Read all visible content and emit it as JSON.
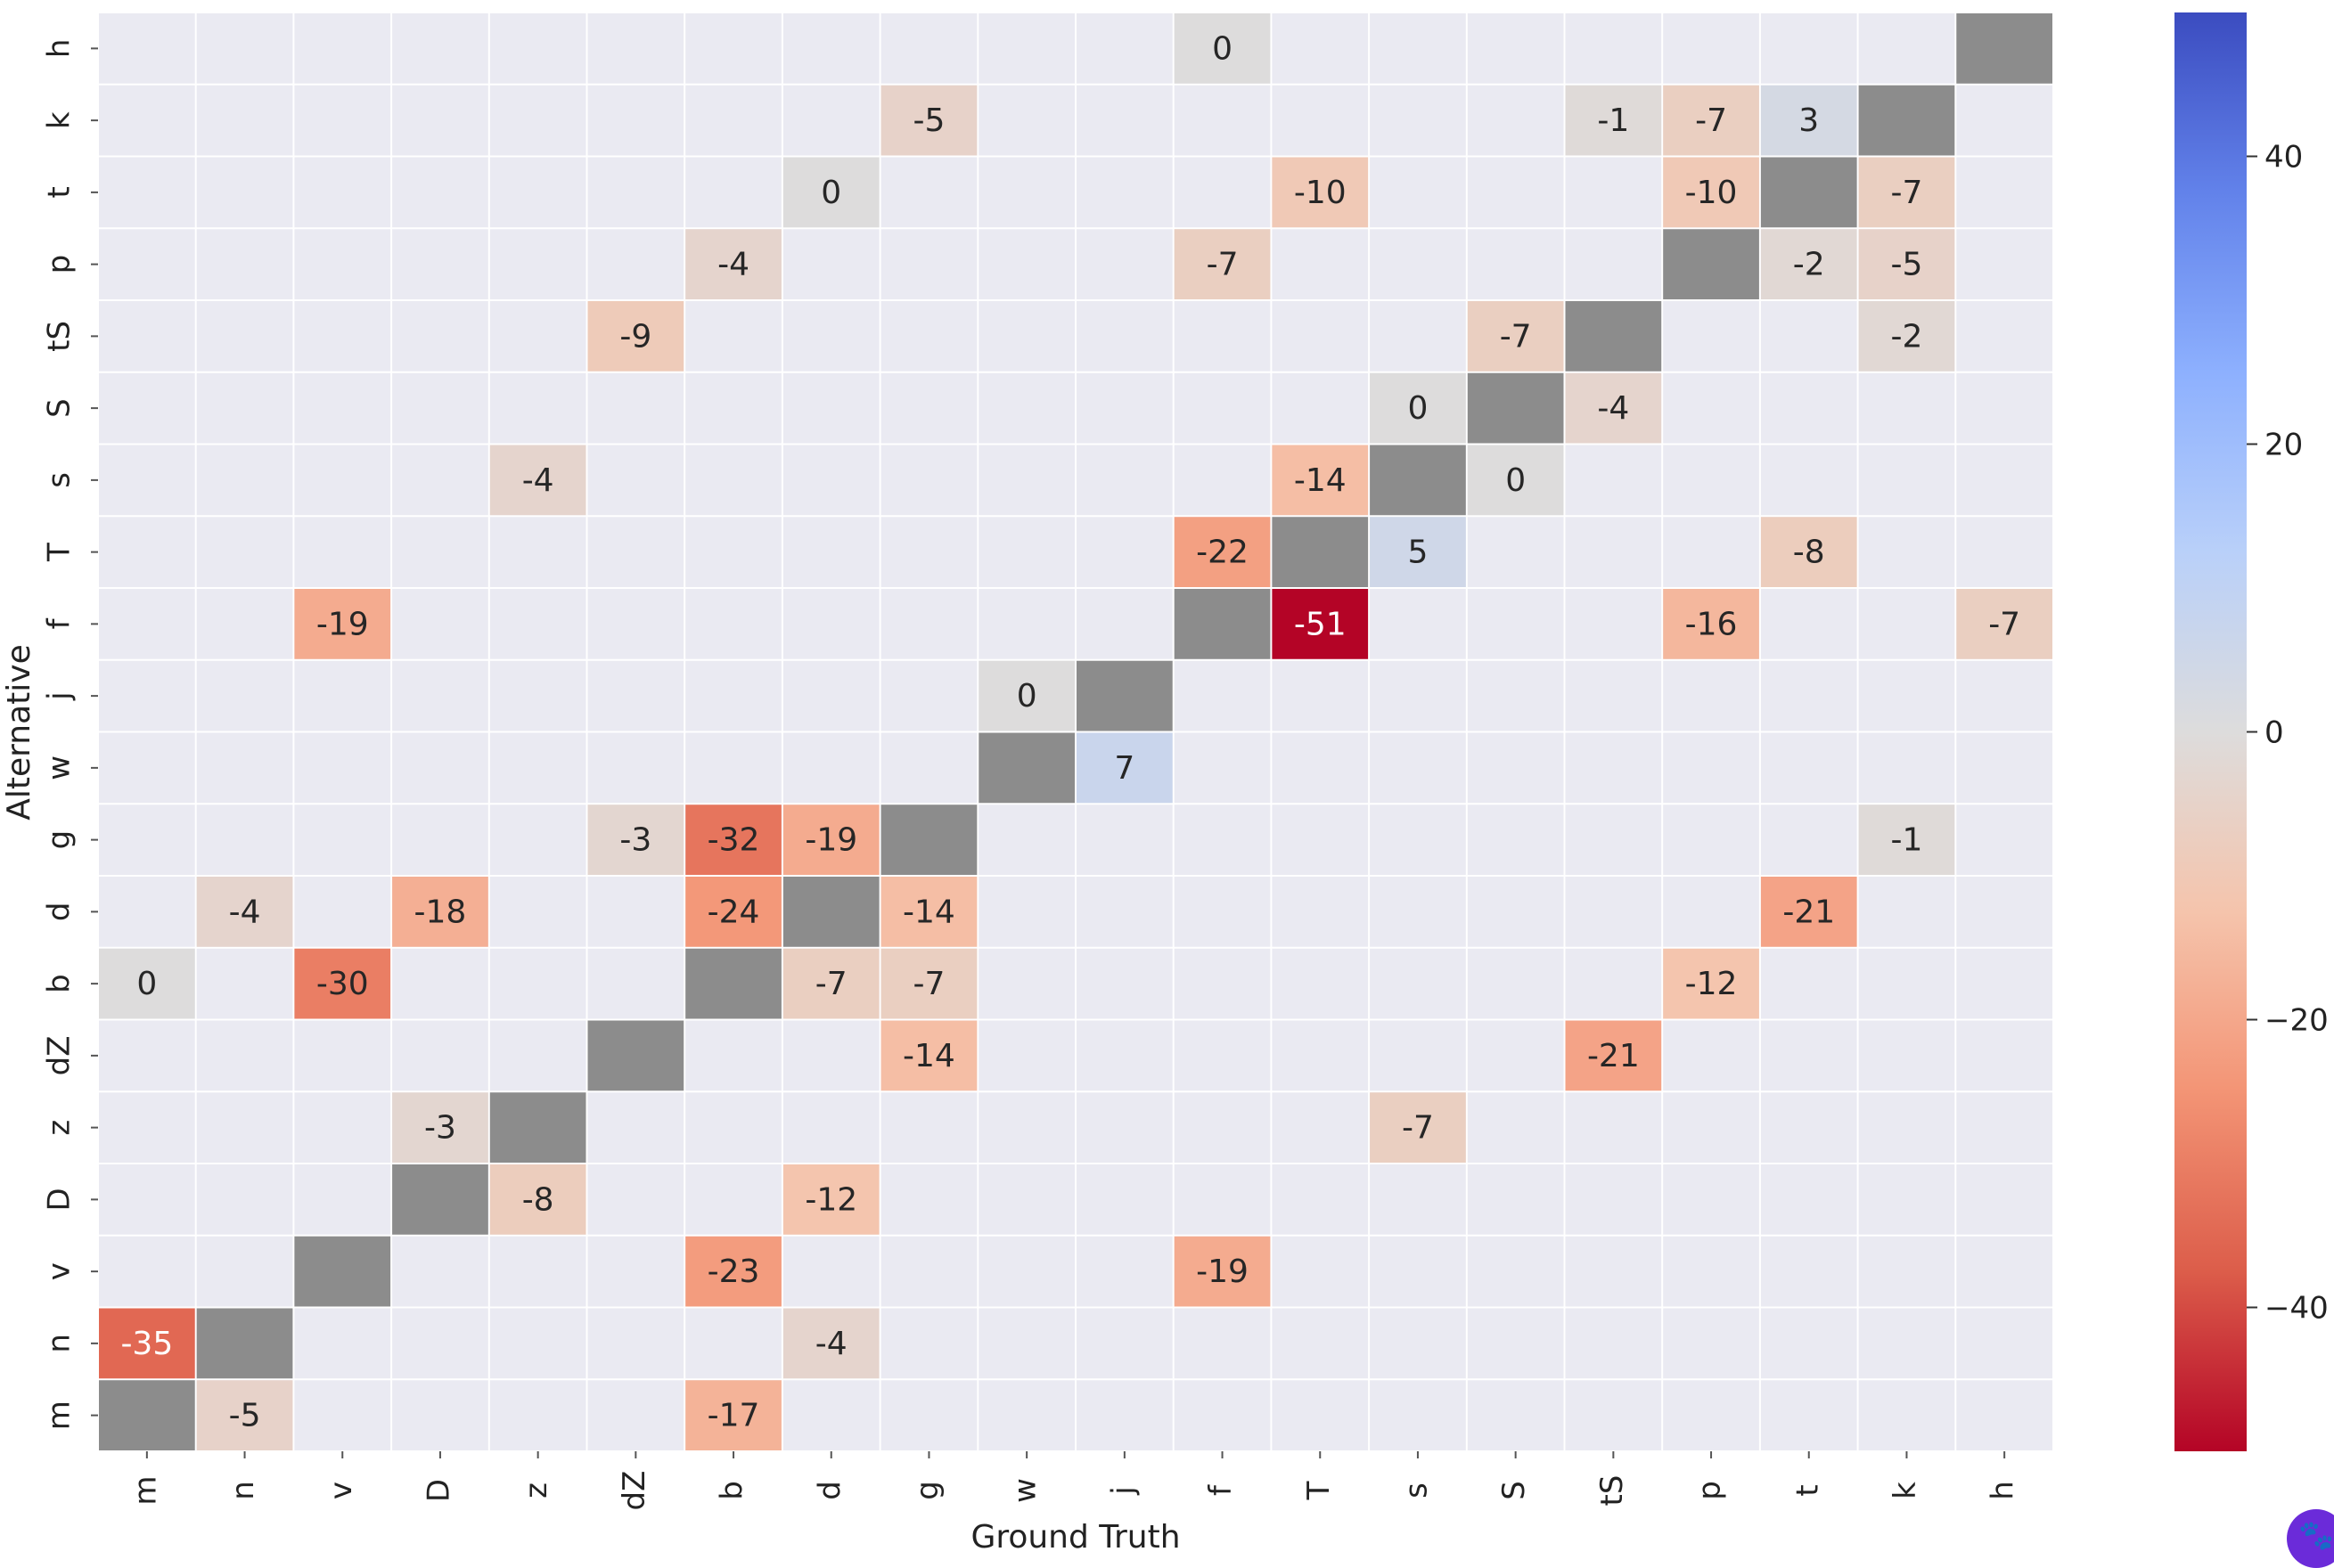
{
  "chart_data": {
    "type": "heatmap",
    "xlabel": "Ground Truth",
    "ylabel": "Alternative",
    "x_categories": [
      "m",
      "n",
      "v",
      "D",
      "z",
      "dZ",
      "b",
      "d",
      "g",
      "w",
      "j",
      "f",
      "T",
      "s",
      "S",
      "tS",
      "p",
      "t",
      "k",
      "h"
    ],
    "y_categories": [
      "h",
      "k",
      "t",
      "p",
      "tS",
      "S",
      "s",
      "T",
      "f",
      "j",
      "w",
      "g",
      "d",
      "b",
      "dZ",
      "z",
      "D",
      "v",
      "n",
      "m"
    ],
    "diagonal_color": "#8c8c8c",
    "missing_color": "#eaeaf2",
    "colormap": "coolwarm",
    "vmin": -50,
    "vmax": 50,
    "colorbar_ticks": [
      -40,
      -20,
      0,
      20,
      40
    ],
    "colorbar_tick_labels": [
      "−40",
      "−20",
      "0",
      "20",
      "40"
    ],
    "cells": [
      {
        "x": "f",
        "y": "h",
        "value": 0
      },
      {
        "x": "g",
        "y": "k",
        "value": -5
      },
      {
        "x": "tS",
        "y": "k",
        "value": -1
      },
      {
        "x": "p",
        "y": "k",
        "value": -7
      },
      {
        "x": "t",
        "y": "k",
        "value": 3
      },
      {
        "x": "d",
        "y": "t",
        "value": 0
      },
      {
        "x": "T",
        "y": "t",
        "value": -10
      },
      {
        "x": "p",
        "y": "t",
        "value": -10
      },
      {
        "x": "k",
        "y": "t",
        "value": -7
      },
      {
        "x": "b",
        "y": "p",
        "value": -4
      },
      {
        "x": "f",
        "y": "p",
        "value": -7
      },
      {
        "x": "t",
        "y": "p",
        "value": -2
      },
      {
        "x": "k",
        "y": "p",
        "value": -5
      },
      {
        "x": "dZ",
        "y": "tS",
        "value": -9
      },
      {
        "x": "S",
        "y": "tS",
        "value": -7
      },
      {
        "x": "k",
        "y": "tS",
        "value": -2
      },
      {
        "x": "s",
        "y": "S",
        "value": 0
      },
      {
        "x": "tS",
        "y": "S",
        "value": -4
      },
      {
        "x": "z",
        "y": "s",
        "value": -4
      },
      {
        "x": "T",
        "y": "s",
        "value": -14
      },
      {
        "x": "S",
        "y": "s",
        "value": 0
      },
      {
        "x": "f",
        "y": "T",
        "value": -22
      },
      {
        "x": "s",
        "y": "T",
        "value": 5
      },
      {
        "x": "t",
        "y": "T",
        "value": -8
      },
      {
        "x": "v",
        "y": "f",
        "value": -19
      },
      {
        "x": "T",
        "y": "f",
        "value": -51
      },
      {
        "x": "p",
        "y": "f",
        "value": -16
      },
      {
        "x": "h",
        "y": "f",
        "value": -7
      },
      {
        "x": "w",
        "y": "j",
        "value": 0
      },
      {
        "x": "j",
        "y": "w",
        "value": 7
      },
      {
        "x": "dZ",
        "y": "g",
        "value": -3
      },
      {
        "x": "b",
        "y": "g",
        "value": -32
      },
      {
        "x": "d",
        "y": "g",
        "value": -19
      },
      {
        "x": "k",
        "y": "g",
        "value": -1
      },
      {
        "x": "n",
        "y": "d",
        "value": -4
      },
      {
        "x": "D",
        "y": "d",
        "value": -18
      },
      {
        "x": "b",
        "y": "d",
        "value": -24
      },
      {
        "x": "g",
        "y": "d",
        "value": -14
      },
      {
        "x": "t",
        "y": "d",
        "value": -21
      },
      {
        "x": "m",
        "y": "b",
        "value": 0
      },
      {
        "x": "v",
        "y": "b",
        "value": -30
      },
      {
        "x": "d",
        "y": "b",
        "value": -7
      },
      {
        "x": "g",
        "y": "b",
        "value": -7
      },
      {
        "x": "p",
        "y": "b",
        "value": -12
      },
      {
        "x": "g",
        "y": "dZ",
        "value": -14
      },
      {
        "x": "tS",
        "y": "dZ",
        "value": -21
      },
      {
        "x": "D",
        "y": "z",
        "value": -3
      },
      {
        "x": "s",
        "y": "z",
        "value": -7
      },
      {
        "x": "z",
        "y": "D",
        "value": -8
      },
      {
        "x": "d",
        "y": "D",
        "value": -12
      },
      {
        "x": "b",
        "y": "v",
        "value": -23
      },
      {
        "x": "f",
        "y": "v",
        "value": -19
      },
      {
        "x": "m",
        "y": "n",
        "value": -35
      },
      {
        "x": "d",
        "y": "n",
        "value": -4
      },
      {
        "x": "n",
        "y": "m",
        "value": -5
      },
      {
        "x": "b",
        "y": "m",
        "value": -17
      }
    ]
  }
}
